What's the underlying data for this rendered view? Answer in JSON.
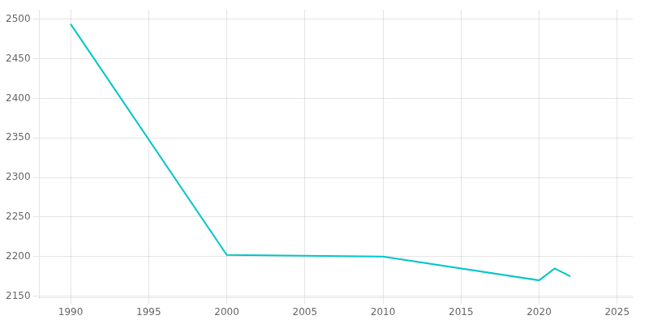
{
  "chart_data": {
    "type": "line",
    "x": [
      1990,
      2000,
      2010,
      2020,
      2021,
      2022
    ],
    "values": [
      2494,
      2202,
      2200,
      2170,
      2185,
      2175
    ],
    "color": "#00C5C8",
    "xlim": [
      1988,
      2026
    ],
    "ylim": [
      2148,
      2512
    ],
    "xticks": [
      1990,
      1995,
      2000,
      2005,
      2010,
      2015,
      2020,
      2025
    ],
    "yticks": [
      2150,
      2200,
      2250,
      2300,
      2350,
      2400,
      2450,
      2500
    ],
    "grid": true
  }
}
